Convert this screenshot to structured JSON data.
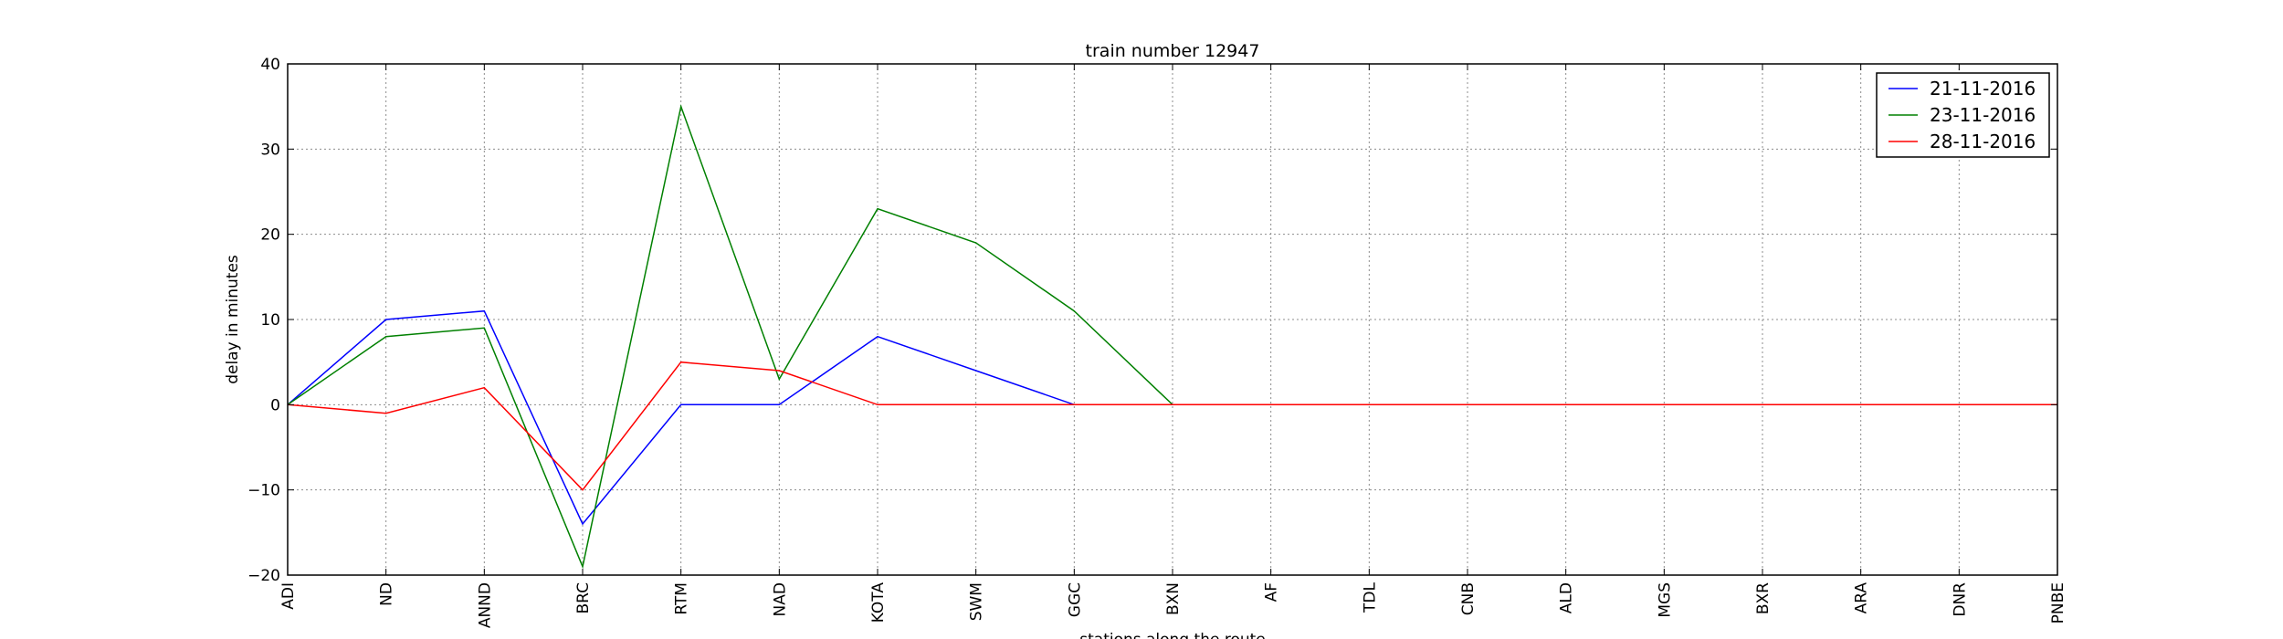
{
  "chart_data": {
    "type": "line",
    "title": "train number 12947",
    "xlabel": "stations along the route",
    "ylabel": "delay in minutes",
    "ylim": [
      -20,
      40
    ],
    "yticks": [
      -20,
      -10,
      0,
      10,
      20,
      30,
      40
    ],
    "grid": true,
    "legend_position": "top-right",
    "categories": [
      "ADI",
      "ND",
      "ANND",
      "BRC",
      "RTM",
      "NAD",
      "KOTA",
      "SWM",
      "GGC",
      "BXN",
      "AF",
      "TDL",
      "CNB",
      "ALD",
      "MGS",
      "BXR",
      "ARA",
      "DNR",
      "PNBE"
    ],
    "series": [
      {
        "name": "21-11-2016",
        "color": "#0000ff",
        "values": [
          0,
          10,
          11,
          -14,
          0,
          0,
          8,
          4,
          0,
          0,
          0,
          0,
          0,
          0,
          0,
          0,
          0,
          0,
          0
        ]
      },
      {
        "name": "23-11-2016",
        "color": "#008000",
        "values": [
          0,
          8,
          9,
          -19,
          35,
          3,
          23,
          19,
          11,
          0,
          0,
          0,
          0,
          0,
          0,
          0,
          0,
          0,
          0
        ]
      },
      {
        "name": "28-11-2016",
        "color": "#ff0000",
        "values": [
          0,
          -1,
          2,
          -10,
          5,
          4,
          0,
          0,
          0,
          0,
          0,
          0,
          0,
          0,
          0,
          0,
          0,
          0,
          0
        ]
      }
    ]
  }
}
